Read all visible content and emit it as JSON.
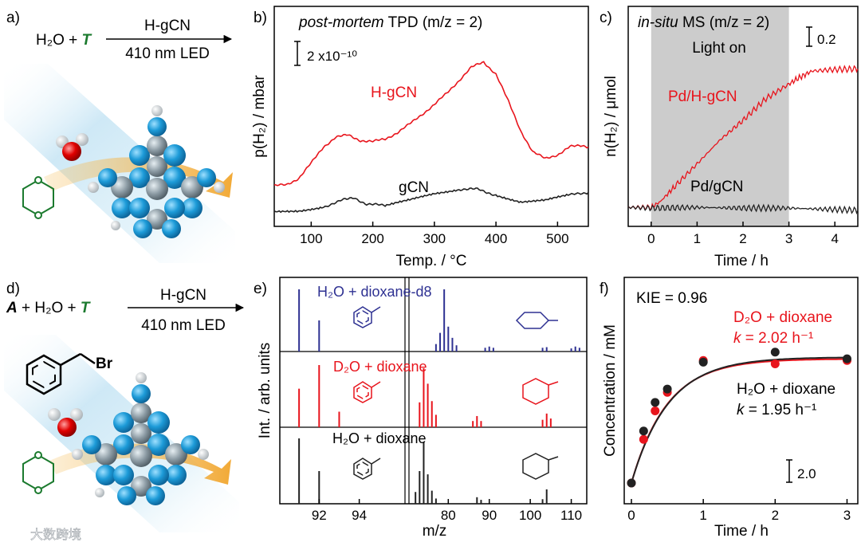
{
  "panels": {
    "a": {
      "letter": "a)",
      "reaction": {
        "reactants": "H₂O + ",
        "reagent": "T",
        "catalyst": "H-gCN",
        "light": "410 nm LED"
      }
    },
    "d": {
      "letter": "d)",
      "reaction": {
        "a": "A",
        "plus1": " + H₂O + ",
        "reagent": "T",
        "catalyst": "H-gCN",
        "light": "410 nm LED"
      },
      "substituent": "Br"
    }
  },
  "chart_data": [
    {
      "panel": "b)",
      "type": "line",
      "title_italic": "post-mortem",
      "title_rest": " TPD (m/z = 2)",
      "xlabel": "Temp. / °C",
      "ylabel": "p(H₂) / mbar",
      "xticks": [
        "100",
        "200",
        "300",
        "400",
        "500"
      ],
      "xlim": [
        40,
        550
      ],
      "scale_bar": "2 x10⁻¹⁰",
      "series": [
        {
          "name": "H-gCN",
          "color": "#e8141c",
          "x": [
            40,
            60,
            80,
            100,
            120,
            140,
            160,
            180,
            200,
            220,
            240,
            260,
            280,
            300,
            320,
            340,
            360,
            380,
            400,
            420,
            440,
            460,
            480,
            500,
            520,
            540,
            550
          ],
          "y": [
            0.4,
            0.42,
            0.52,
            0.75,
            1.0,
            1.15,
            1.18,
            1.1,
            1.08,
            1.12,
            1.22,
            1.35,
            1.5,
            1.65,
            1.82,
            2.02,
            2.22,
            2.3,
            2.12,
            1.7,
            1.25,
            0.92,
            0.82,
            0.88,
            1.0,
            1.02,
            1.0
          ]
        },
        {
          "name": "gCN",
          "color": "#222222",
          "x": [
            40,
            80,
            120,
            150,
            170,
            190,
            220,
            260,
            300,
            340,
            370,
            400,
            440,
            480,
            520,
            550
          ],
          "y": [
            0.0,
            0.02,
            0.08,
            0.18,
            0.22,
            0.12,
            0.1,
            0.18,
            0.28,
            0.35,
            0.35,
            0.26,
            0.16,
            0.18,
            0.26,
            0.3
          ]
        }
      ]
    },
    {
      "panel": "c)",
      "type": "line",
      "title_italic": "in-situ",
      "title_rest": " MS (m/z = 2)",
      "xlabel": "Time / h",
      "ylabel": "n(H₂) / μmol",
      "xticks": [
        "0",
        "1",
        "2",
        "3",
        "4"
      ],
      "xlim": [
        -0.5,
        4.5
      ],
      "shaded": [
        0,
        3
      ],
      "shaded_label": "Light on",
      "scale_bar": "0.2",
      "series": [
        {
          "name": "Pd/H-gCN",
          "color": "#e8141c",
          "x": [
            -0.5,
            0,
            0.2,
            0.5,
            1,
            1.5,
            2,
            2.5,
            3,
            3.2,
            3.5,
            4,
            4.5
          ],
          "y": [
            0.02,
            0.02,
            0.1,
            0.3,
            0.62,
            0.95,
            1.22,
            1.52,
            1.72,
            1.8,
            1.9,
            1.92,
            1.93
          ]
        },
        {
          "name": "Pd/gCN",
          "color": "#222222",
          "x": [
            -0.5,
            0,
            1,
            2,
            3,
            4,
            4.5
          ],
          "y": [
            0.02,
            0.01,
            0.02,
            0.01,
            0.01,
            -0.01,
            -0.02
          ]
        }
      ]
    },
    {
      "panel": "e)",
      "type": "bar",
      "xlabel": "m/z",
      "ylabel": "Int. / arb. units",
      "xticks": [
        "92",
        "94",
        "80",
        "90",
        "100",
        "110"
      ],
      "series": [
        {
          "name": "H₂O + dioxane-d8",
          "color": "#2e3192",
          "left": [
            [
              91,
              1.0
            ],
            [
              92,
              0.5
            ]
          ],
          "right": [
            [
              77,
              0.12
            ],
            [
              78,
              0.3
            ],
            [
              79,
              1.0
            ],
            [
              80,
              0.4
            ],
            [
              81,
              0.22
            ],
            [
              82,
              0.1
            ],
            [
              89,
              0.06
            ],
            [
              90,
              0.08
            ],
            [
              91,
              0.06
            ],
            [
              103,
              0.06
            ],
            [
              104,
              0.07
            ],
            [
              110,
              0.05
            ],
            [
              111,
              0.08
            ],
            [
              112,
              0.06
            ]
          ]
        },
        {
          "name": "D₂O + dioxane",
          "color": "#e8141c",
          "left": [
            [
              91,
              0.62
            ],
            [
              92,
              1.0
            ],
            [
              93,
              0.25
            ]
          ],
          "right": [
            [
              73,
              0.4
            ],
            [
              74,
              0.95
            ],
            [
              75,
              0.7
            ],
            [
              76,
              0.42
            ],
            [
              77,
              0.2
            ],
            [
              86,
              0.1
            ],
            [
              87,
              0.18
            ],
            [
              88,
              0.1
            ],
            [
              103,
              0.12
            ],
            [
              104,
              0.22
            ],
            [
              105,
              0.14
            ]
          ]
        },
        {
          "name": "H₂O + dioxane",
          "color": "#222222",
          "left": [
            [
              91,
              1.0
            ],
            [
              92,
              0.5
            ]
          ],
          "right": [
            [
              72,
              0.18
            ],
            [
              73,
              0.5
            ],
            [
              74,
              0.95
            ],
            [
              75,
              0.45
            ],
            [
              76,
              0.2
            ],
            [
              77,
              0.08
            ],
            [
              87,
              0.1
            ],
            [
              88,
              0.06
            ],
            [
              103,
              0.07
            ],
            [
              104,
              0.22
            ]
          ]
        }
      ]
    },
    {
      "panel": "f)",
      "type": "scatter",
      "annotation": "KIE = 0.96",
      "xlabel": "Time / h",
      "ylabel": "Concentration / mM",
      "xticks": [
        "0",
        "1",
        "2",
        "3"
      ],
      "xlim": [
        -0.1,
        3.15
      ],
      "scale_bar": "2.0",
      "series": [
        {
          "name": "D₂O + dioxane",
          "k_label": "k",
          "k_value": " = 2.02 h⁻¹",
          "color": "#e8141c",
          "x": [
            0,
            0.17,
            0.33,
            0.5,
            1,
            2,
            3
          ],
          "y": [
            0.0,
            2.6,
            4.3,
            5.4,
            7.3,
            7.1,
            7.3
          ]
        },
        {
          "name": "H₂O + dioxane",
          "k_label": "k",
          "k_value": " = 1.95 h⁻¹",
          "color": "#222222",
          "x": [
            0,
            0.17,
            0.33,
            0.5,
            1,
            2,
            3
          ],
          "y": [
            0.0,
            3.1,
            4.8,
            5.6,
            7.2,
            7.8,
            7.4
          ]
        }
      ]
    }
  ],
  "watermark": "大数跨境"
}
